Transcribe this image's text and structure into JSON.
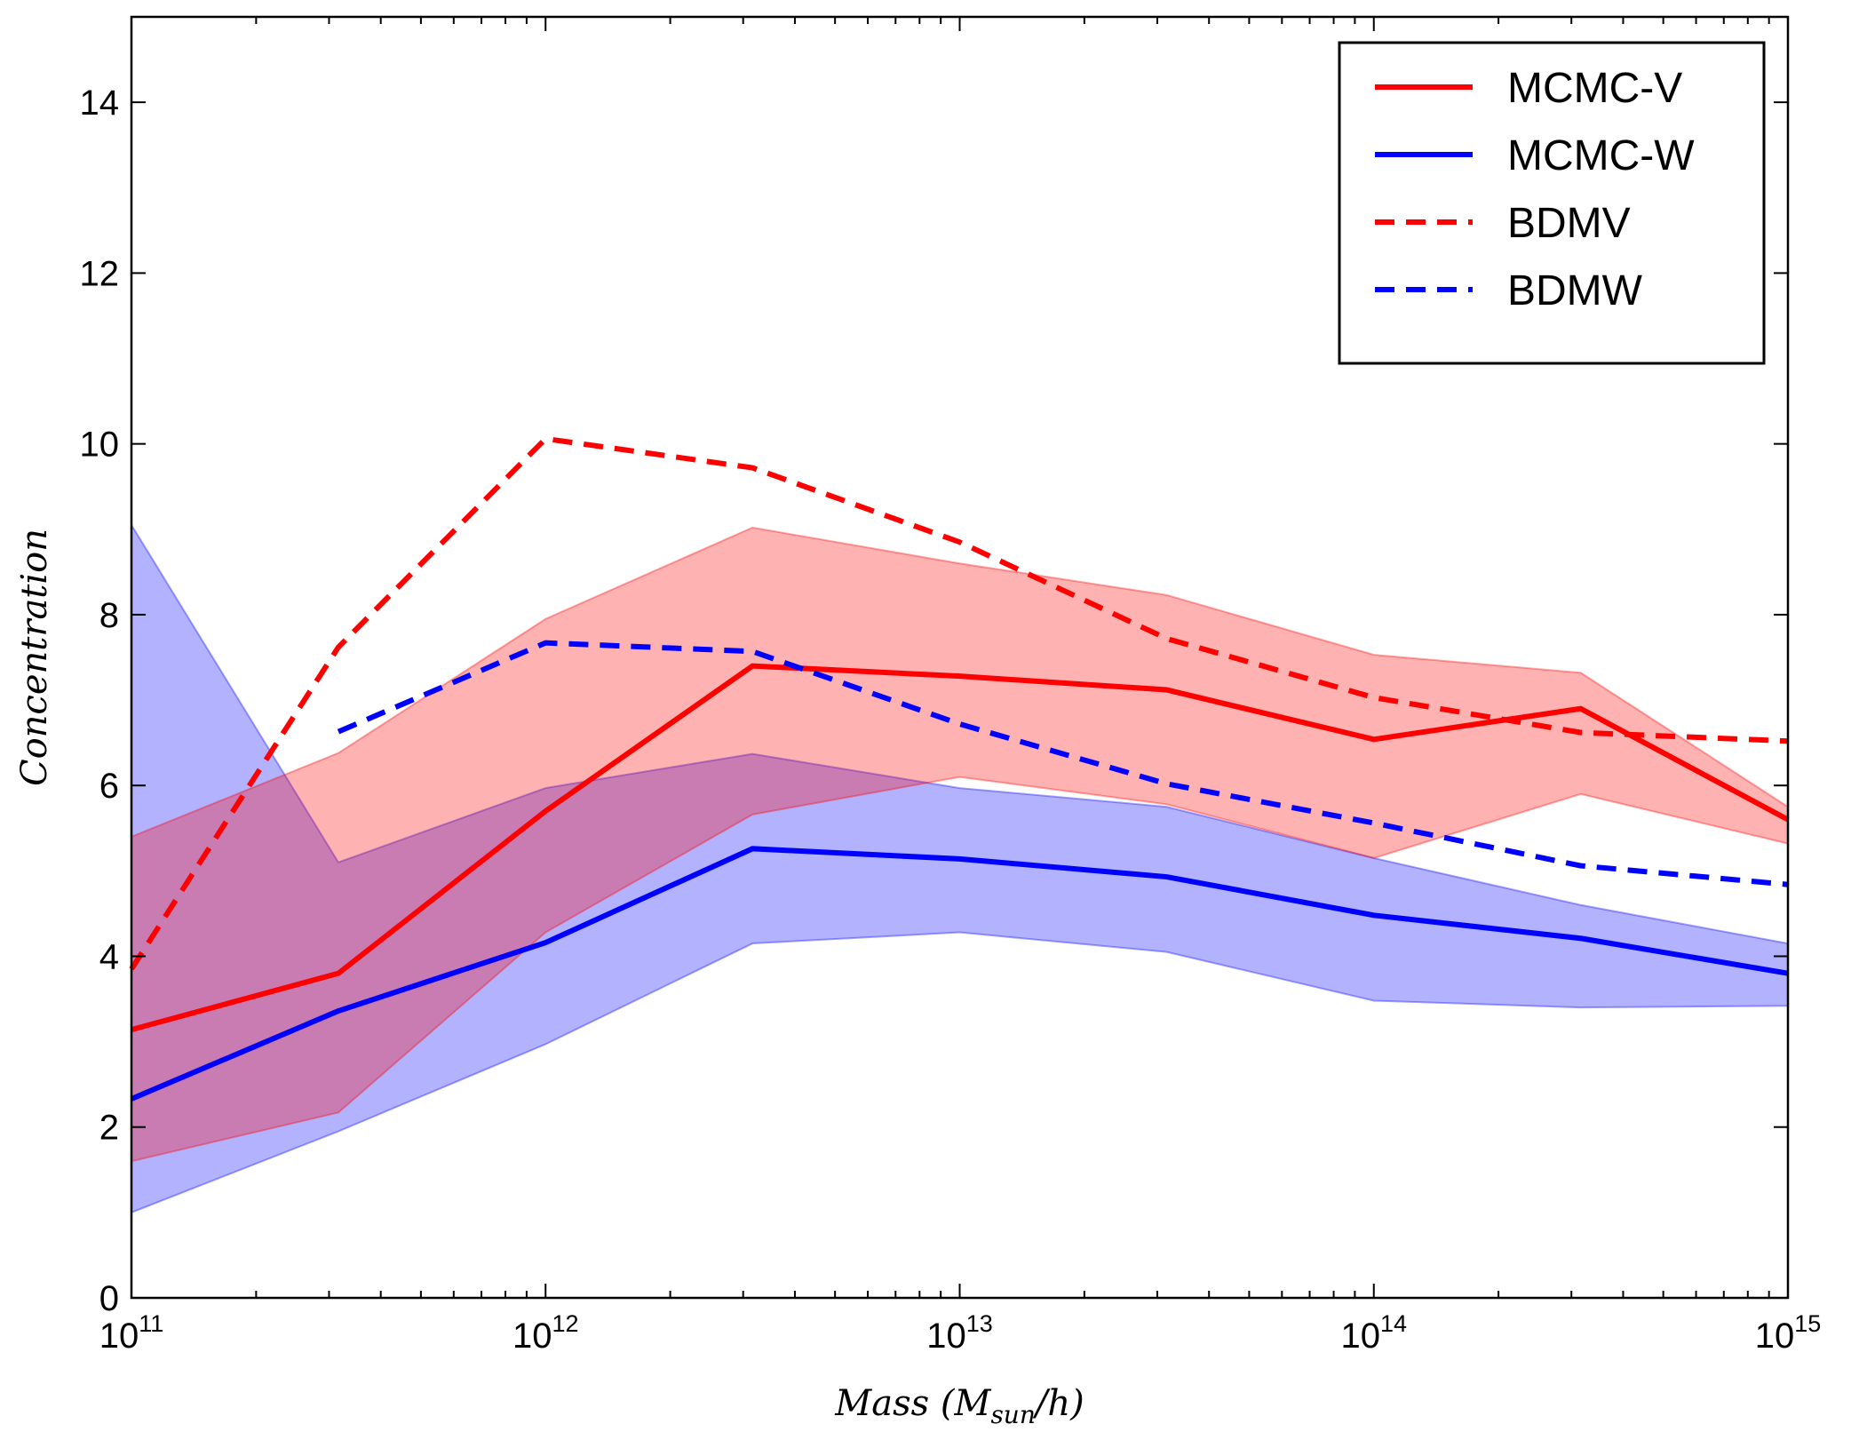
{
  "chart_data": {
    "type": "line",
    "x_scale": "log",
    "x": [
      100000000000.0,
      316000000000.0,
      1000000000000.0,
      3160000000000.0,
      10000000000000.0,
      31600000000000.0,
      100000000000000.0,
      316000000000000.0,
      1000000000000000.0
    ],
    "xlim": [
      100000000000.0,
      1000000000000000.0
    ],
    "ylim": [
      0,
      15
    ],
    "xlabel": "Mass (M_sun/h)",
    "ylabel": "Concentration",
    "x_ticks": [
      {
        "value": 100000000000.0,
        "base": "10",
        "exp": "11"
      },
      {
        "value": 1000000000000.0,
        "base": "10",
        "exp": "12"
      },
      {
        "value": 10000000000000.0,
        "base": "10",
        "exp": "13"
      },
      {
        "value": 100000000000000.0,
        "base": "10",
        "exp": "14"
      },
      {
        "value": 1000000000000000.0,
        "base": "10",
        "exp": "15"
      }
    ],
    "y_ticks": [
      0,
      2,
      4,
      6,
      8,
      10,
      12,
      14
    ],
    "y_tick_labels": [
      "0",
      "2",
      "4",
      "6",
      "8",
      "10",
      "12",
      "14"
    ],
    "grid": false,
    "legend_position": "top-right",
    "bands": [
      {
        "for": "MCMC-W",
        "color": "#0000ff",
        "opacity": 0.3,
        "upper": [
          9.05,
          5.1,
          5.97,
          6.37,
          5.97,
          5.75,
          5.15,
          4.6,
          4.15
        ],
        "lower": [
          1.0,
          1.95,
          2.97,
          4.15,
          4.28,
          4.05,
          3.48,
          3.4,
          3.42
        ]
      },
      {
        "for": "MCMC-V",
        "color": "#ff0000",
        "opacity": 0.3,
        "upper": [
          5.4,
          6.38,
          7.95,
          9.02,
          8.6,
          8.23,
          7.53,
          7.32,
          5.75
        ],
        "lower": [
          1.6,
          2.17,
          4.28,
          5.66,
          6.1,
          5.78,
          5.15,
          5.9,
          5.32
        ]
      }
    ],
    "series": [
      {
        "name": "MCMC-V",
        "color": "#ff0000",
        "style": "solid",
        "values": [
          3.14,
          3.8,
          5.7,
          7.4,
          7.28,
          7.12,
          6.54,
          6.9,
          5.6
        ]
      },
      {
        "name": "MCMC-W",
        "color": "#0000ff",
        "style": "solid",
        "values": [
          2.33,
          3.36,
          4.16,
          5.26,
          5.14,
          4.93,
          4.48,
          4.21,
          3.8
        ]
      },
      {
        "name": "BDMV",
        "color": "#ff0000",
        "style": "dashed",
        "values": [
          3.85,
          7.62,
          10.06,
          9.72,
          8.85,
          7.72,
          7.03,
          6.62,
          6.52
        ]
      },
      {
        "name": "BDMW",
        "color": "#0000ff",
        "style": "dashed",
        "values": [
          null,
          6.63,
          7.67,
          7.57,
          6.72,
          6.02,
          5.56,
          5.06,
          4.84
        ]
      }
    ]
  }
}
